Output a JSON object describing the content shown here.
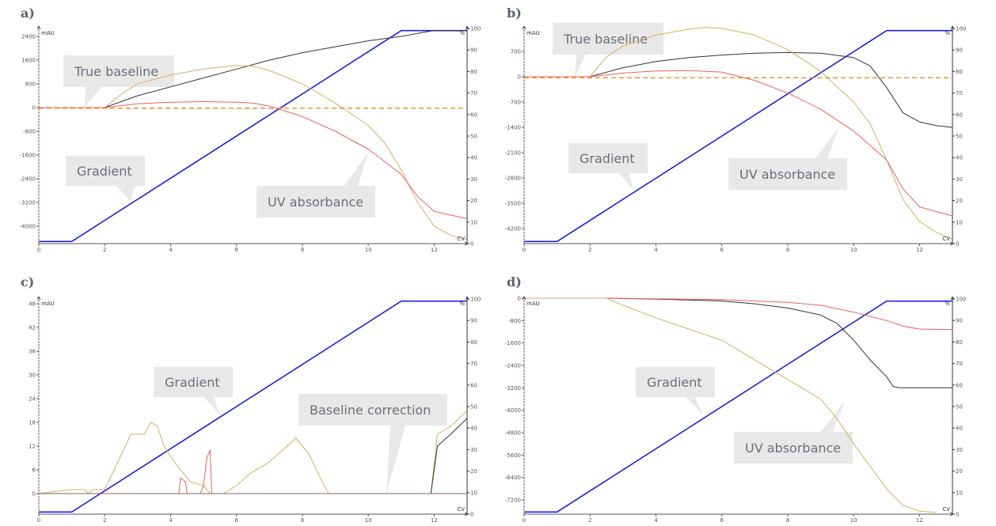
{
  "figure": {
    "panels": [
      {
        "id": "a",
        "label": "a)"
      },
      {
        "id": "b",
        "label": "b)"
      },
      {
        "id": "c",
        "label": "c)"
      },
      {
        "id": "d",
        "label": "d)"
      }
    ]
  },
  "colors": {
    "gradient": "#2020e0",
    "black_trace": "#333333",
    "red_trace": "#f06060",
    "tan_trace": "#d4b060",
    "baseline_dashed": "#f08020",
    "callout_bg": "#e8e8e8",
    "callout_text": "#6b6f78",
    "axis": "#555555",
    "left_axis": "#8a5050"
  },
  "chart_data": [
    {
      "panel": "a",
      "type": "line",
      "title": "a)",
      "xlabel": "CV",
      "ylabel_left": "mAU",
      "ylabel_right": "%",
      "xlim": [
        0,
        13
      ],
      "xticks": [
        "0",
        "2",
        "4",
        "6",
        "8",
        "10",
        "12"
      ],
      "ylim_left": [
        -4600,
        2700
      ],
      "yticks_left": [
        "2400",
        "1600",
        "800",
        "0",
        "-800",
        "-1600",
        "-2400",
        "-3200",
        "-4000"
      ],
      "ylim_right": [
        0,
        100
      ],
      "yticks_right": [
        "100",
        "90",
        "80",
        "70",
        "60",
        "50",
        "40",
        "30",
        "20",
        "10",
        "0"
      ],
      "annotations": [
        "True baseline",
        "Gradient",
        "UV absorbance"
      ],
      "series": [
        {
          "name": "Gradient (%B)",
          "axis": "right",
          "x": [
            0,
            1,
            11,
            13
          ],
          "y": [
            1,
            1,
            99,
            99
          ]
        },
        {
          "name": "UV trace (black)",
          "axis": "left",
          "x": [
            0,
            2,
            3,
            4,
            5,
            6,
            7,
            8,
            9,
            10,
            11,
            12,
            13
          ],
          "y": [
            0,
            0,
            400,
            700,
            1000,
            1300,
            1600,
            1850,
            2050,
            2250,
            2400,
            2600,
            2600
          ]
        },
        {
          "name": "UV trace (tan)",
          "axis": "left",
          "x": [
            0,
            2,
            2.5,
            3,
            4,
            5,
            6,
            6.5,
            7,
            8,
            9,
            10,
            10.5,
            11,
            11.5,
            12,
            12.5,
            13
          ],
          "y": [
            0,
            0,
            450,
            800,
            1100,
            1300,
            1420,
            1400,
            1250,
            800,
            150,
            -600,
            -1200,
            -2100,
            -3200,
            -4000,
            -4300,
            -4450
          ]
        },
        {
          "name": "UV trace (red)",
          "axis": "left",
          "x": [
            0,
            2,
            3,
            4,
            5,
            6,
            6.5,
            7,
            8,
            9,
            10,
            11,
            11.5,
            12,
            13
          ],
          "y": [
            0,
            0,
            130,
            180,
            200,
            180,
            150,
            50,
            -300,
            -800,
            -1400,
            -2250,
            -3000,
            -3500,
            -3750
          ]
        },
        {
          "name": "Baseline (dashed)",
          "axis": "left",
          "x": [
            0,
            13
          ],
          "y": [
            -20,
            -20
          ]
        }
      ]
    },
    {
      "panel": "b",
      "type": "line",
      "title": "b)",
      "xlabel": "CV",
      "ylabel_left": "mAU",
      "ylabel_right": "%",
      "xlim": [
        0,
        13
      ],
      "xticks": [
        "0",
        "2",
        "4",
        "6",
        "8",
        "10",
        "12"
      ],
      "ylim_left": [
        -4700,
        1450
      ],
      "yticks_left": [
        "700",
        "0",
        "-700",
        "-1400",
        "-2100",
        "-2800",
        "-3500",
        "-4200"
      ],
      "ylim_right": [
        0,
        100
      ],
      "yticks_right": [
        "100",
        "90",
        "80",
        "70",
        "60",
        "50",
        "40",
        "30",
        "20",
        "10",
        "0"
      ],
      "annotations": [
        "True baseline",
        "Gradient",
        "UV absorbance"
      ],
      "series": [
        {
          "name": "Gradient (%B)",
          "axis": "right",
          "x": [
            0,
            1,
            11,
            13
          ],
          "y": [
            1,
            1,
            99,
            99
          ]
        },
        {
          "name": "UV trace (black)",
          "axis": "left",
          "x": [
            0,
            2,
            3,
            4,
            5,
            6,
            7,
            8,
            9,
            10,
            10.5,
            11,
            11.5,
            12,
            12.5,
            13
          ],
          "y": [
            0,
            0,
            250,
            420,
            530,
            600,
            650,
            670,
            650,
            530,
            300,
            -300,
            -1000,
            -1250,
            -1350,
            -1400
          ]
        },
        {
          "name": "UV trace (tan)",
          "axis": "left",
          "x": [
            0,
            2,
            2.5,
            3,
            4,
            5,
            5.5,
            6,
            7,
            8,
            9,
            10,
            10.5,
            11,
            11.5,
            12,
            12.5,
            13
          ],
          "y": [
            0,
            0,
            550,
            850,
            1150,
            1320,
            1360,
            1340,
            1150,
            750,
            150,
            -700,
            -1300,
            -2300,
            -3400,
            -4000,
            -4300,
            -4500
          ]
        },
        {
          "name": "UV trace (red)",
          "axis": "left",
          "x": [
            0,
            2,
            3,
            4,
            5,
            6,
            7,
            8,
            9,
            10,
            11,
            11.5,
            12,
            13
          ],
          "y": [
            0,
            0,
            100,
            160,
            170,
            130,
            -100,
            -450,
            -900,
            -1500,
            -2300,
            -3100,
            -3600,
            -3850
          ]
        },
        {
          "name": "Baseline (dashed)",
          "axis": "left",
          "x": [
            0,
            13
          ],
          "y": [
            -30,
            -30
          ]
        }
      ]
    },
    {
      "panel": "c",
      "type": "line",
      "title": "c)",
      "xlabel": "CV",
      "ylabel_left": "mAU",
      "ylabel_right": "%",
      "xlim": [
        0,
        13
      ],
      "xticks": [
        "0",
        "2",
        "4",
        "6",
        "8",
        "10",
        "12"
      ],
      "ylim_left": [
        -5,
        50
      ],
      "yticks_left": [
        "48",
        "42",
        "36",
        "30",
        "24",
        "18",
        "12",
        "6",
        "0"
      ],
      "ylim_right": [
        0,
        100
      ],
      "yticks_right": [
        "100",
        "90",
        "80",
        "70",
        "60",
        "50",
        "40",
        "30",
        "20",
        "10",
        "0"
      ],
      "annotations": [
        "Gradient",
        "Baseline correction"
      ],
      "series": [
        {
          "name": "Gradient (%B)",
          "axis": "right",
          "x": [
            0,
            1,
            11,
            13
          ],
          "y": [
            1,
            1,
            99,
            99
          ]
        },
        {
          "name": "UV trace (tan)",
          "axis": "left",
          "x": [
            0,
            1,
            1.4,
            1.5,
            1.65,
            2,
            2.4,
            2.8,
            3.2,
            3.4,
            3.6,
            3.8,
            4.2,
            4.6,
            5,
            5.2,
            5.6,
            6,
            6.4,
            7,
            7.4,
            7.8,
            8.2,
            8.6,
            8.8,
            11.9,
            12.1,
            12.5,
            13
          ],
          "y": [
            0,
            1,
            1,
            0,
            1,
            1,
            8,
            15,
            15,
            18,
            17,
            12,
            7,
            3,
            2,
            0,
            0,
            2,
            5,
            8,
            11,
            14,
            10,
            3,
            0,
            0,
            15,
            17,
            21
          ]
        },
        {
          "name": "UV trace (red)",
          "axis": "left",
          "x": [
            0,
            4.25,
            4.3,
            4.45,
            4.5,
            4.9,
            5.0,
            5.1,
            5.2,
            5.25,
            13
          ],
          "y": [
            0,
            0,
            4,
            3,
            0,
            0,
            2,
            9,
            11,
            0,
            0
          ]
        },
        {
          "name": "UV trace (black)",
          "axis": "left",
          "x": [
            0,
            11.9,
            12.1,
            12.5,
            13
          ],
          "y": [
            0,
            0,
            12,
            15,
            19
          ]
        }
      ]
    },
    {
      "panel": "d",
      "type": "line",
      "title": "d)",
      "xlabel": "CV",
      "ylabel_left": "mAU",
      "ylabel_right": "%",
      "xlim": [
        0,
        13
      ],
      "xticks": [
        "0",
        "2",
        "4",
        "6",
        "8",
        "10",
        "12"
      ],
      "ylim_left": [
        -7750,
        0
      ],
      "yticks_left": [
        "0",
        "-800",
        "-1600",
        "-2400",
        "-3200",
        "-4000",
        "-4800",
        "-5600",
        "-6400",
        "-7200"
      ],
      "ylim_right": [
        0,
        100
      ],
      "yticks_right": [
        "100",
        "90",
        "80",
        "70",
        "60",
        "50",
        "40",
        "30",
        "20",
        "10",
        "0"
      ],
      "annotations": [
        "Gradient",
        "UV absorbance"
      ],
      "series": [
        {
          "name": "Gradient (%B)",
          "axis": "right",
          "x": [
            0,
            1,
            11,
            13
          ],
          "y": [
            1,
            1,
            99,
            99
          ]
        },
        {
          "name": "UV trace (black)",
          "axis": "left",
          "x": [
            0,
            2.5,
            4,
            6,
            7,
            8,
            9,
            9.5,
            10,
            10.5,
            11,
            11.2,
            11.4,
            13
          ],
          "y": [
            0,
            0,
            -30,
            -100,
            -200,
            -350,
            -600,
            -900,
            -1500,
            -2200,
            -2800,
            -3150,
            -3200,
            -3200
          ]
        },
        {
          "name": "UV trace (red)",
          "axis": "left",
          "x": [
            0,
            2.5,
            4,
            6,
            8,
            9,
            10,
            10.5,
            11,
            11.5,
            12,
            13
          ],
          "y": [
            0,
            0,
            -20,
            -50,
            -150,
            -250,
            -500,
            -650,
            -800,
            -1000,
            -1100,
            -1120
          ]
        },
        {
          "name": "UV trace (tan)",
          "axis": "left",
          "x": [
            0,
            2.5,
            3,
            4,
            5,
            6,
            7,
            8,
            9,
            9.5,
            10,
            10.5,
            11,
            11.5,
            12,
            12.5
          ],
          "y": [
            0,
            0,
            -250,
            -700,
            -1100,
            -1500,
            -2200,
            -2900,
            -3600,
            -4300,
            -5200,
            -6000,
            -6800,
            -7400,
            -7600,
            -7650
          ]
        }
      ]
    }
  ]
}
